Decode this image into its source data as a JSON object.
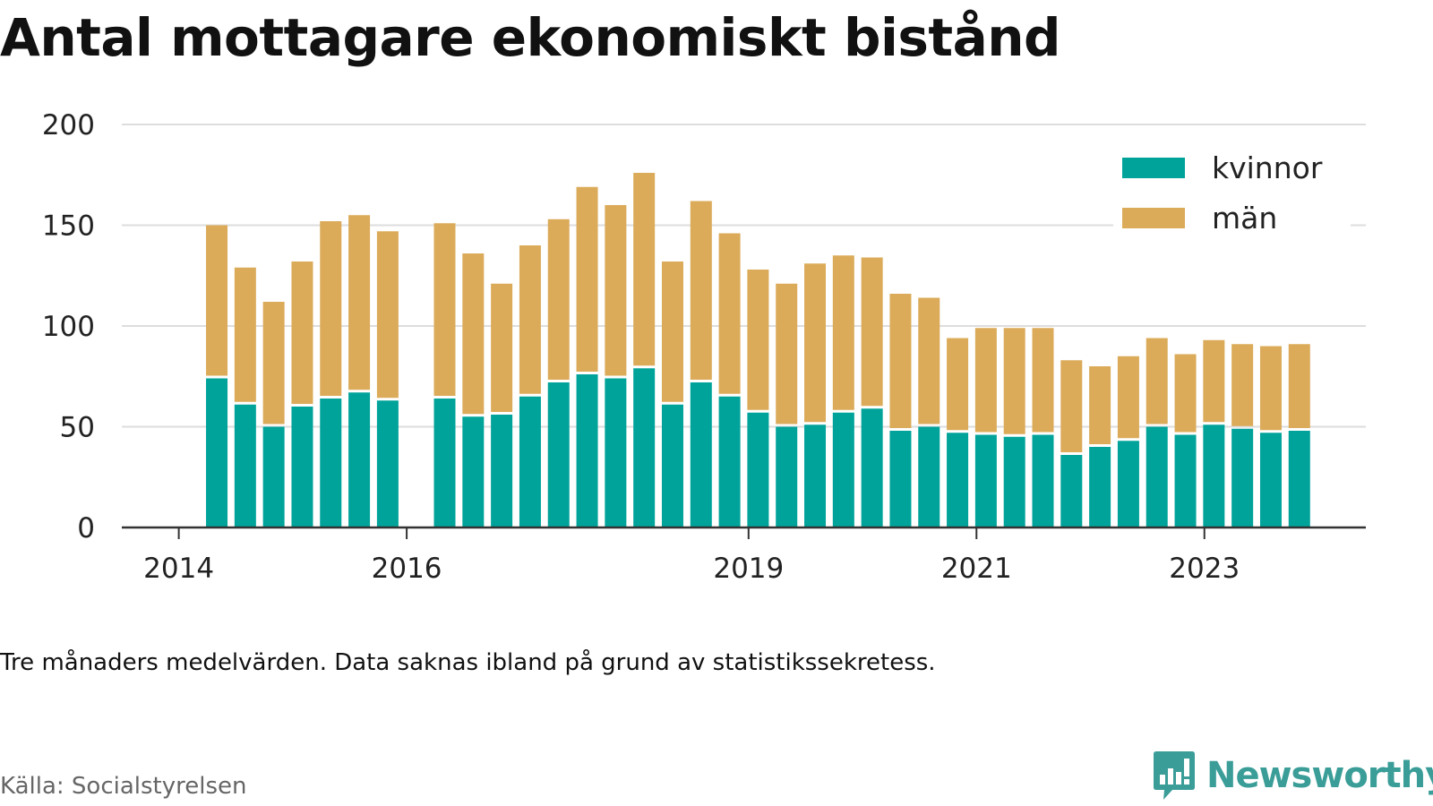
{
  "colors": {
    "kvinnor": "#00a39a",
    "man": "#dbab5a",
    "grid": "#dddddd",
    "axis": "#333333",
    "brand": "#3a9d98"
  },
  "source": "Källa: Socialstyrelsen",
  "brand": {
    "name": "Newsworthy",
    "icon": "bar-chart-speech-bubble-icon"
  },
  "chart_data": {
    "type": "bar",
    "stacked": true,
    "title": "Antal mottagare ekonomiskt bistånd",
    "note": "Tre månaders medelvärden. Data saknas ibland på grund av statistikssekretess.",
    "xlabel": "",
    "ylabel": "",
    "ylim": [
      0,
      200
    ],
    "yticks": [
      0,
      50,
      100,
      150,
      200
    ],
    "xlim": [
      "2013-07-01",
      "2024-06-01"
    ],
    "xticks": [
      {
        "label": "2014",
        "date": "2014-01-01"
      },
      {
        "label": "2016",
        "date": "2016-01-01"
      },
      {
        "label": "2019",
        "date": "2019-01-01"
      },
      {
        "label": "2021",
        "date": "2021-01-01"
      },
      {
        "label": "2023",
        "date": "2023-01-01"
      }
    ],
    "grid": true,
    "legend": "top-right",
    "x": [
      "2014-05",
      "2014-08",
      "2014-11",
      "2015-02",
      "2015-05",
      "2015-08",
      "2015-11",
      "2016-05",
      "2016-08",
      "2016-11",
      "2017-02",
      "2017-05",
      "2017-08",
      "2017-11",
      "2018-02",
      "2018-05",
      "2018-08",
      "2018-11",
      "2019-02",
      "2019-05",
      "2019-08",
      "2019-11",
      "2020-02",
      "2020-05",
      "2020-08",
      "2020-11",
      "2021-02",
      "2021-05",
      "2021-08",
      "2021-11",
      "2022-02",
      "2022-05",
      "2022-08",
      "2022-11",
      "2023-02",
      "2023-05",
      "2023-08",
      "2023-11"
    ],
    "series": [
      {
        "name": "kvinnor",
        "values": [
          74,
          61,
          50,
          60,
          64,
          67,
          63,
          64,
          55,
          56,
          65,
          72,
          76,
          74,
          79,
          61,
          72,
          65,
          57,
          50,
          51,
          57,
          59,
          48,
          50,
          47,
          46,
          45,
          46,
          36,
          40,
          43,
          50,
          46,
          51,
          49,
          47,
          48
        ]
      },
      {
        "name": "män",
        "values": [
          76,
          68,
          62,
          72,
          88,
          88,
          84,
          87,
          81,
          65,
          75,
          81,
          93,
          86,
          97,
          71,
          90,
          81,
          71,
          71,
          80,
          78,
          75,
          68,
          64,
          47,
          53,
          54,
          53,
          47,
          40,
          42,
          44,
          40,
          42,
          42,
          43,
          43
        ]
      }
    ]
  }
}
